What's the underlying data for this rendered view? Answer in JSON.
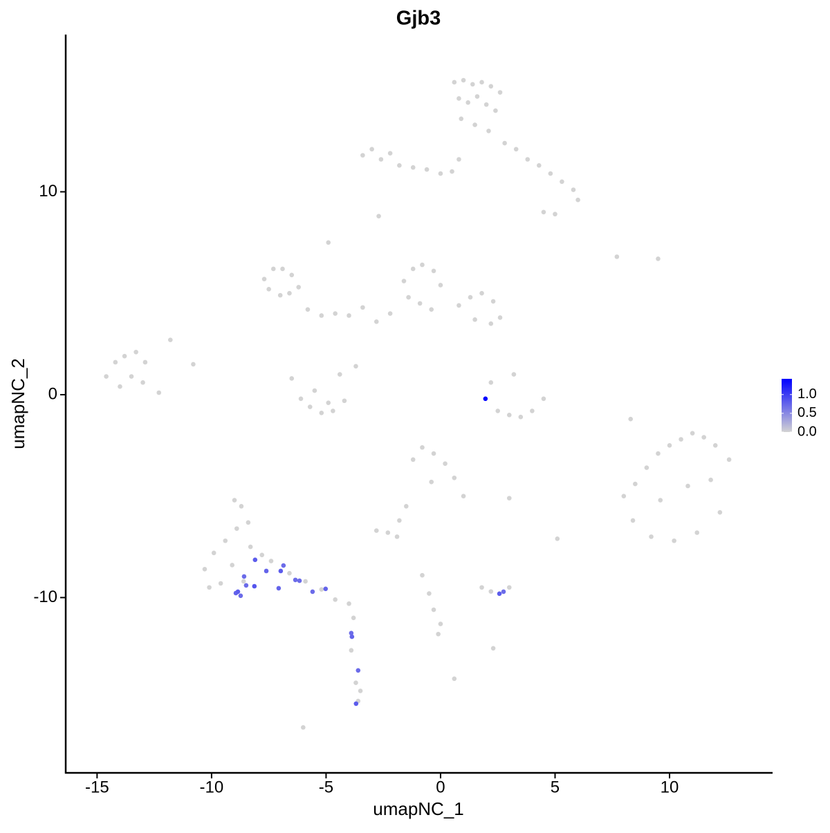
{
  "chart_data": {
    "type": "scatter",
    "title": "Gjb3",
    "x_label": "umapNC_1",
    "y_label": "umapNC_2",
    "xlim": [
      -16.37,
      14.5
    ],
    "ylim": [
      -18.64,
      17.75
    ],
    "xticks": [
      -15,
      -10,
      -5,
      0,
      5,
      10
    ],
    "yticks": [
      -10,
      0,
      10
    ],
    "colorbar": {
      "lim": [
        0,
        1.42
      ],
      "low_color": "#d3d3d3",
      "high_color": "#0000ff",
      "ticks": [
        {
          "value": 0,
          "label": "0.0"
        },
        {
          "value": 0.5,
          "label": "0.5"
        },
        {
          "value": 1,
          "label": "1.0"
        }
      ]
    },
    "x": [
      0.6,
      1.0,
      1.4,
      1.8,
      2.2,
      2.6,
      0.8,
      1.2,
      1.6,
      2.0,
      2.4,
      0.9,
      1.5,
      2.1,
      2.8,
      3.3,
      3.8,
      4.3,
      4.8,
      5.3,
      5.8,
      6.0,
      4.5,
      5.0,
      -3.4,
      -3.0,
      -2.6,
      -2.2,
      -1.8,
      -1.2,
      -0.6,
      0.0,
      0.5,
      0.8,
      -7.7,
      -7.3,
      -6.9,
      -6.5,
      -7.5,
      -7.0,
      -6.6,
      -6.2,
      -1.6,
      -1.2,
      -0.8,
      -0.3,
      0.0,
      -1.4,
      -0.9,
      -0.4,
      0.8,
      1.3,
      1.8,
      2.3,
      2.6,
      1.5,
      2.2,
      -5.8,
      -5.2,
      -4.6,
      -4.0,
      -3.4,
      -2.8,
      -2.2,
      -4.9,
      -14.6,
      -14.2,
      -13.8,
      -13.3,
      -12.9,
      -14.0,
      -13.5,
      -13.0,
      -12.3,
      -11.8,
      -6.5,
      -6.1,
      -5.7,
      -5.2,
      -4.7,
      -4.2,
      -3.7,
      -5.5,
      -4.9,
      -4.4,
      2.5,
      3.0,
      3.5,
      4.0,
      4.5,
      2.2,
      3.2,
      8.0,
      8.5,
      9.0,
      9.5,
      10.0,
      10.5,
      11.0,
      11.5,
      12.0,
      12.6,
      8.4,
      9.2,
      10.2,
      11.2,
      12.2,
      9.6,
      10.8,
      11.8,
      -1.2,
      -0.8,
      -0.3,
      0.2,
      0.6,
      -0.4,
      1.0,
      -1.5,
      -1.8,
      -9.0,
      -8.7,
      -8.4,
      -8.9,
      -9.4,
      -9.9,
      -10.3,
      -8.3,
      -7.8,
      -9.6,
      -10.1,
      -9.1,
      -7.4,
      -8.6,
      -6.6,
      -5.9,
      -5.2,
      -4.6,
      -4.0,
      -3.8,
      -3.9,
      -3.7,
      -3.5,
      -3.6,
      -2.8,
      -2.3,
      -1.9,
      -0.8,
      -0.5,
      -0.3,
      0.0,
      -0.1,
      1.8,
      2.2,
      3.0,
      2.3,
      0.6,
      -6.0,
      7.7,
      8.3,
      9.5,
      -10.8,
      -2.7,
      3.0,
      5.1,
      -8.1,
      -8.58,
      -7.61,
      -6.86,
      -6.98,
      -8.49,
      -8.13,
      -8.94,
      -8.73,
      -8.85,
      -7.07,
      -6.34,
      -6.16,
      -5.59,
      -5.02,
      2.57,
      2.75,
      -3.9,
      -3.87,
      -3.6,
      -3.69,
      1.96
    ],
    "y": [
      15.4,
      15.5,
      15.3,
      15.4,
      15.2,
      14.9,
      14.6,
      14.4,
      14.7,
      14.3,
      14.0,
      13.6,
      13.3,
      13.0,
      12.4,
      12.1,
      11.6,
      11.3,
      10.9,
      10.5,
      10.1,
      9.6,
      9.0,
      8.9,
      11.8,
      12.1,
      11.6,
      11.9,
      11.3,
      11.2,
      11.1,
      10.9,
      11.0,
      11.6,
      5.7,
      6.2,
      6.2,
      5.9,
      5.2,
      4.9,
      5.0,
      5.3,
      5.6,
      6.2,
      6.4,
      6.1,
      5.4,
      4.8,
      4.5,
      4.2,
      4.4,
      4.8,
      5.0,
      4.6,
      3.8,
      3.7,
      3.5,
      4.2,
      3.9,
      4.0,
      3.9,
      4.3,
      3.6,
      4.0,
      7.5,
      0.9,
      1.6,
      1.9,
      2.1,
      1.6,
      0.4,
      0.9,
      0.6,
      0.1,
      2.7,
      0.8,
      -0.2,
      -0.6,
      -0.9,
      -0.8,
      -0.3,
      1.4,
      0.2,
      -0.4,
      1.0,
      -0.8,
      -1.0,
      -1.1,
      -0.8,
      -0.2,
      0.6,
      1.0,
      -5.0,
      -4.4,
      -3.6,
      -2.9,
      -2.5,
      -2.2,
      -1.9,
      -2.1,
      -2.5,
      -3.2,
      -6.2,
      -7.0,
      -7.2,
      -6.8,
      -5.8,
      -5.2,
      -4.5,
      -4.2,
      -3.2,
      -2.6,
      -2.9,
      -3.4,
      -4.1,
      -4.3,
      -5.0,
      -5.5,
      -6.2,
      -5.2,
      -5.5,
      -6.3,
      -6.6,
      -7.2,
      -7.8,
      -8.6,
      -7.5,
      -7.9,
      -9.3,
      -9.5,
      -8.4,
      -8.2,
      -9.2,
      -8.8,
      -9.2,
      -9.6,
      -10.1,
      -10.3,
      -11.0,
      -12.6,
      -14.2,
      -14.6,
      -15.1,
      -6.7,
      -6.8,
      -7.0,
      -8.9,
      -9.8,
      -10.6,
      -11.3,
      -11.8,
      -9.5,
      -9.7,
      -9.5,
      -12.5,
      -14.0,
      -16.4,
      6.8,
      -1.2,
      6.7,
      1.5,
      8.8,
      -5.1,
      -7.1,
      -8.14,
      -8.96,
      -8.69,
      -8.42,
      -8.69,
      -9.4,
      -9.44,
      -9.78,
      -9.91,
      -9.71,
      -9.54,
      -9.13,
      -9.17,
      -9.71,
      -9.57,
      -9.81,
      -9.71,
      -11.75,
      -11.93,
      -13.59,
      -15.23,
      -0.2
    ],
    "values": [
      0,
      0,
      0,
      0,
      0,
      0,
      0,
      0,
      0,
      0,
      0,
      0,
      0,
      0,
      0,
      0,
      0,
      0,
      0,
      0,
      0,
      0,
      0,
      0,
      0,
      0,
      0,
      0,
      0,
      0,
      0,
      0,
      0,
      0,
      0,
      0,
      0,
      0,
      0,
      0,
      0,
      0,
      0,
      0,
      0,
      0,
      0,
      0,
      0,
      0,
      0,
      0,
      0,
      0,
      0,
      0,
      0,
      0,
      0,
      0,
      0,
      0,
      0,
      0,
      0,
      0,
      0,
      0,
      0,
      0,
      0,
      0,
      0,
      0,
      0,
      0,
      0,
      0,
      0,
      0,
      0,
      0,
      0,
      0,
      0,
      0,
      0,
      0,
      0,
      0,
      0,
      0,
      0,
      0,
      0,
      0,
      0,
      0,
      0,
      0,
      0,
      0,
      0,
      0,
      0,
      0,
      0,
      0,
      0,
      0,
      0,
      0,
      0,
      0,
      0,
      0,
      0,
      0,
      0,
      0,
      0,
      0,
      0,
      0,
      0,
      0,
      0,
      0,
      0,
      0,
      0,
      0,
      0,
      0,
      0,
      0,
      0,
      0,
      0,
      0,
      0,
      0,
      0,
      0,
      0,
      0,
      0,
      0,
      0,
      0,
      0,
      0,
      0,
      0,
      0,
      0,
      0,
      0,
      0,
      0,
      0,
      0,
      0,
      0,
      0.8,
      0.7,
      0.75,
      0.7,
      0.8,
      0.7,
      0.85,
      0.75,
      0.7,
      0.8,
      0.75,
      0.7,
      0.7,
      0.7,
      0.75,
      0.8,
      0.7,
      0.7,
      0.75,
      0.7,
      0.8,
      1.42
    ]
  }
}
